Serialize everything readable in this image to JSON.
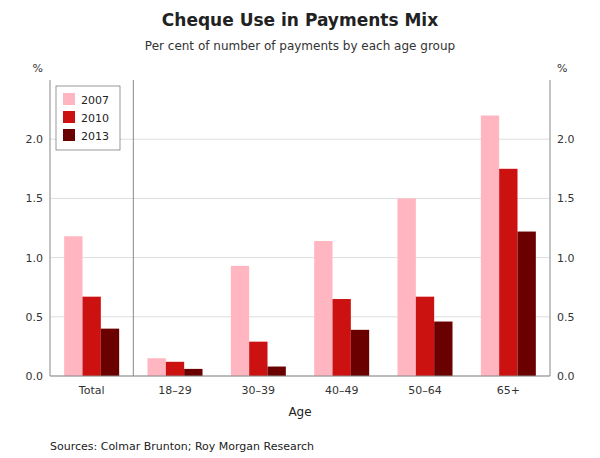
{
  "chart_data": {
    "type": "bar",
    "title": "Cheque Use in Payments Mix",
    "subtitle": "Per cent of number of payments by each age group",
    "xlabel": "Age",
    "ylabel": "%",
    "y2label": "%",
    "categories": [
      "Total",
      "18–29",
      "30–39",
      "40–49",
      "50–64",
      "65+"
    ],
    "series": [
      {
        "name": "2007",
        "color": "#FFB6C1",
        "values": [
          1.18,
          0.15,
          0.93,
          1.14,
          1.5,
          2.2
        ]
      },
      {
        "name": "2010",
        "color": "#CC1111",
        "values": [
          0.67,
          0.12,
          0.29,
          0.65,
          0.67,
          1.75
        ]
      },
      {
        "name": "2013",
        "color": "#6B0000",
        "values": [
          0.4,
          0.06,
          0.08,
          0.39,
          0.46,
          1.22
        ]
      }
    ],
    "ylim": [
      0,
      2.5
    ],
    "yticks": [
      {
        "value": 0.0,
        "label": "0.0"
      },
      0.5,
      {
        "value": 1.0,
        "label": "1.0"
      },
      1.5,
      {
        "value": 2.0,
        "label": "2.0"
      }
    ],
    "y2lim": [
      0,
      2.5
    ],
    "y2ticks": [
      {
        "value": 0.0,
        "label": "0.0"
      },
      0.5,
      {
        "value": 1.0,
        "label": "1.0"
      },
      1.5,
      {
        "value": 2.0,
        "label": "2.0"
      }
    ],
    "grid": true,
    "legend": "upper left",
    "annotations": [
      "Sources:  Colmar Brunton; Roy Morgan Research"
    ]
  }
}
